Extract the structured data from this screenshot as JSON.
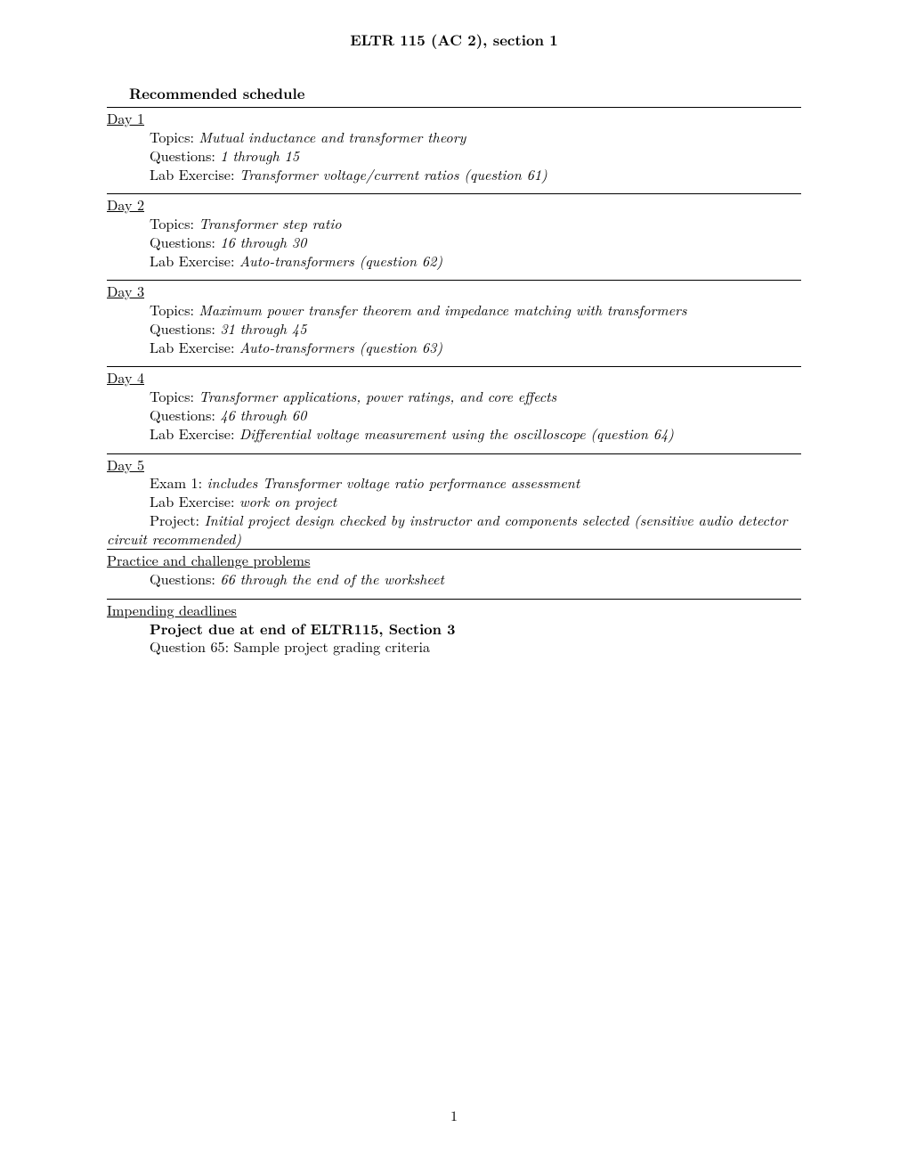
{
  "title": "ELTR 115 (AC 2), section 1",
  "sectionTitle": "Recommended schedule",
  "pageNumber": "1",
  "days": [
    {
      "label": "Day 1",
      "topics": "Mutual inductance and transformer theory",
      "questions": "1 through 15",
      "lab": "Transformer voltage/current ratios (question 61)"
    },
    {
      "label": "Day 2",
      "topics": "Transformer step ratio",
      "questions": "16 through 30",
      "lab": "Auto-transformers (question 62)"
    },
    {
      "label": "Day 3",
      "topics": "Maximum power transfer theorem and impedance matching with transformers",
      "questions": "31 through 45",
      "lab": "Auto-transformers (question 63)"
    },
    {
      "label": "Day 4",
      "topics": "Transformer applications, power ratings, and core effects",
      "questions": "46 through 60",
      "lab": "Differential voltage measurement using the oscilloscope (question 64)"
    }
  ],
  "day5": {
    "label": "Day 5",
    "exam": "includes Transformer voltage ratio performance assessment",
    "lab": "work on project",
    "projectPrefix": "Project: ",
    "projectLine1": "Initial project design checked by instructor and components selected (sensitive audio detector",
    "projectLine2": "circuit recommended)"
  },
  "labels": {
    "topics": "Topics: ",
    "questions": "Questions: ",
    "lab": "Lab Exercise: ",
    "exam": "Exam 1: "
  },
  "practice": {
    "heading": "Practice and challenge problems",
    "questions": "66 through the end of the worksheet"
  },
  "deadlines": {
    "heading": "Impending deadlines",
    "bold": "Project due at end of ELTR115, Section 3",
    "line": "Question 65: Sample project grading criteria"
  }
}
